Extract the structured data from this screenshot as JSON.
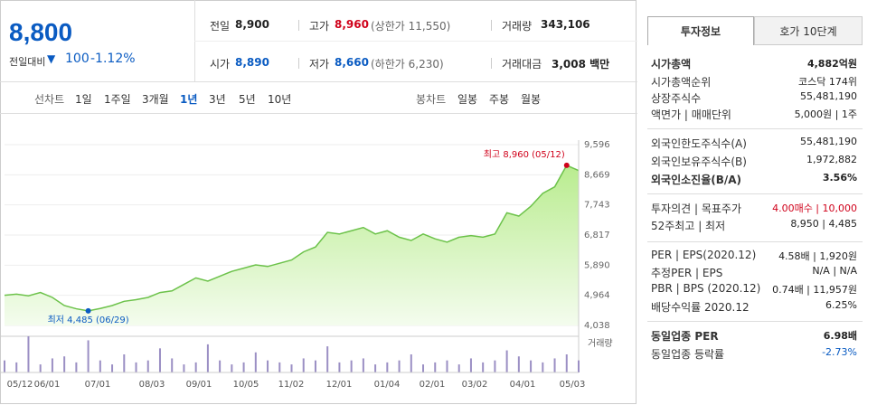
{
  "header": {
    "price": "8,800",
    "change_label": "전일대비",
    "change": "100",
    "change_rate": "-1.12%",
    "stats": [
      [
        {
          "label": "전일",
          "value": "8,900"
        },
        {
          "label": "고가",
          "value": "8,960",
          "note": "(상한가 11,550)"
        },
        {
          "label": "거래량",
          "value": "343,106"
        }
      ],
      [
        {
          "label": "시가",
          "value": "8,890"
        },
        {
          "label": "저가",
          "value": "8,660",
          "note": "(하한가 6,230)"
        },
        {
          "label": "거래대금",
          "value": "3,008 백만"
        }
      ]
    ]
  },
  "tabs": {
    "line_label": "선차트",
    "line": [
      "1일",
      "1주일",
      "3개월",
      "1년",
      "3년",
      "5년",
      "10년"
    ],
    "candle_label": "봉차트",
    "candle": [
      "일봉",
      "주봉",
      "월봉"
    ]
  },
  "chart_data": {
    "type": "line",
    "color": "#6cc24a",
    "values": [
      4964,
      5000,
      4950,
      5050,
      4900,
      4650,
      4550,
      4485,
      4560,
      4650,
      4780,
      4830,
      4900,
      5050,
      5100,
      5300,
      5500,
      5400,
      5550,
      5700,
      5800,
      5900,
      5850,
      5950,
      6050,
      6300,
      6450,
      6900,
      6850,
      6950,
      7050,
      6850,
      6950,
      6750,
      6650,
      6850,
      6700,
      6600,
      6750,
      6800,
      6750,
      6850,
      7500,
      7400,
      7700,
      8100,
      8300,
      8960,
      8800
    ],
    "ylim": [
      4038,
      9596
    ],
    "yticks": [
      {
        "value": 9596,
        "label": "9,596"
      },
      {
        "value": 8669,
        "label": "8,669"
      },
      {
        "value": 7743,
        "label": "7,743"
      },
      {
        "value": 6817,
        "label": "6,817"
      },
      {
        "value": 5890,
        "label": "5,890"
      },
      {
        "value": 4964,
        "label": "4,964"
      },
      {
        "value": 4038,
        "label": "4,038"
      }
    ],
    "annotations": [
      "최고 8,960 (05/12)",
      "최저 4,485 (06/29)"
    ],
    "volume_label": "거래량",
    "volume": [
      300,
      250,
      900,
      200,
      350,
      400,
      250,
      800,
      300,
      200,
      450,
      250,
      300,
      600,
      350,
      200,
      250,
      700,
      300,
      200,
      250,
      500,
      300,
      250,
      200,
      350,
      300,
      650,
      250,
      300,
      350,
      200,
      250,
      300,
      450,
      200,
      250,
      300,
      200,
      350,
      250,
      300,
      550,
      400,
      300,
      250,
      350,
      450,
      300
    ],
    "xtick_labels": [
      "05/12",
      "06/01",
      "07/01",
      "08/03",
      "09/01",
      "10/05",
      "11/02",
      "12/01",
      "01/04",
      "02/01",
      "03/02",
      "04/01",
      "05/03"
    ]
  },
  "sidebar": {
    "tabs": [
      "투자정보",
      "호가 10단계"
    ],
    "sections": [
      [
        {
          "label": "시가총액",
          "value": "4,882억원"
        },
        {
          "label": "시가총액순위",
          "value": "코스닥 174위"
        },
        {
          "label": "상장주식수",
          "value": "55,481,190"
        },
        {
          "label": "액면가 | 매매단위",
          "value": "5,000원 | 1주"
        }
      ],
      [
        {
          "label": "외국인한도주식수(A)",
          "value": "55,481,190"
        },
        {
          "label": "외국인보유주식수(B)",
          "value": "1,972,882"
        },
        {
          "label": "외국인소진율(B/A)",
          "value": "3.56%"
        }
      ],
      [
        {
          "label": "투자의견 | 목표주가",
          "value": "4.00매수 | 10,000"
        },
        {
          "label": "52주최고 | 최저",
          "value": "8,950 | 4,485"
        }
      ],
      [
        {
          "label": "PER | EPS(2020.12)",
          "value": "4.58배 | 1,920원"
        },
        {
          "label": "추정PER | EPS",
          "value": "N/A | N/A"
        },
        {
          "label": "PBR | BPS (2020.12)",
          "value": "0.74배 | 11,957원"
        },
        {
          "label": "배당수익률 2020.12",
          "value": "6.25%"
        }
      ],
      [
        {
          "label": "동일업종 PER",
          "value": "6.98배"
        },
        {
          "label": "동일업종 등락률",
          "value": "-2.73%"
        }
      ]
    ]
  }
}
